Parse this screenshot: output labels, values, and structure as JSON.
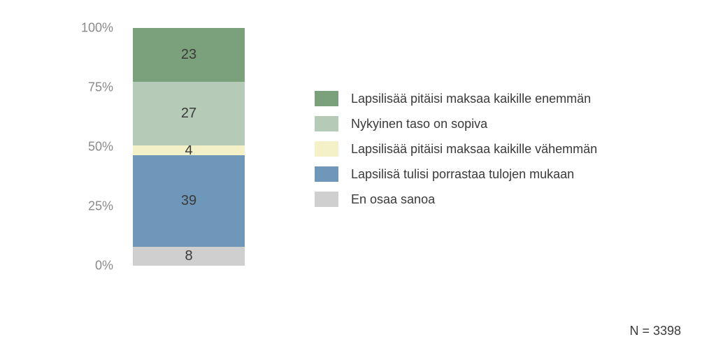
{
  "chart": {
    "type": "stacked-bar",
    "ylim": [
      0,
      100
    ],
    "ytick_step": 25,
    "yticks": [
      "0%",
      "25%",
      "50%",
      "75%",
      "100%"
    ],
    "background_color": "#ffffff",
    "axis_label_color": "#8a8a8a",
    "axis_label_fontsize": 18,
    "segment_label_color": "#3a3a3a",
    "segment_label_fontsize": 20,
    "legend_text_color": "#3a3a3a",
    "legend_fontsize": 18,
    "n_label_color": "#3a3a3a",
    "n_label_fontsize": 18,
    "bar_total": 101,
    "segments": [
      {
        "label": "Lapsilisää pitäisi maksaa kaikille enemmän",
        "value": 23,
        "color": "#7ba07c"
      },
      {
        "label": "Nykyinen taso on sopiva",
        "value": 27,
        "color": "#b5cbb7"
      },
      {
        "label": "Lapsilisää pitäisi maksaa kaikille vähemmän",
        "value": 4,
        "color": "#f4f0c7"
      },
      {
        "label": "Lapsilisä tulisi porrastaa tulojen mukaan",
        "value": 39,
        "color": "#6f97b9"
      },
      {
        "label": "En osaa sanoa",
        "value": 8,
        "color": "#cfcfcf"
      }
    ],
    "n_label": "N = 3398"
  }
}
